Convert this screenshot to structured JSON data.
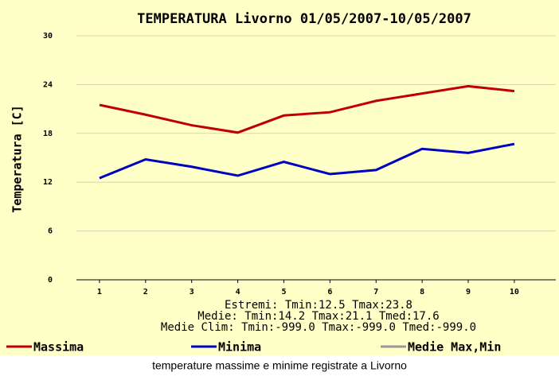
{
  "chart_data": {
    "type": "line",
    "title": "TEMPERATURA Livorno 01/05/2007-10/05/2007",
    "y_label": "Temperatura [C]",
    "x": [
      1,
      2,
      3,
      4,
      5,
      6,
      7,
      8,
      9,
      10
    ],
    "series": [
      {
        "name": "Massima",
        "color": "#c00000",
        "values": [
          21.5,
          20.3,
          19.0,
          18.1,
          20.2,
          20.6,
          22.0,
          22.9,
          23.8,
          23.2
        ]
      },
      {
        "name": "Minima",
        "color": "#0000c0",
        "values": [
          12.5,
          14.8,
          13.9,
          12.8,
          14.5,
          13.0,
          13.5,
          16.1,
          15.6,
          16.7
        ]
      }
    ],
    "legend_extra": [
      {
        "name": "Medie Max,Min",
        "color": "#999999"
      }
    ],
    "xlim": [
      0.5,
      10.9
    ],
    "xticks": [
      1,
      2,
      3,
      4,
      5,
      6,
      7,
      8,
      9,
      10
    ],
    "ylim": [
      0,
      30
    ],
    "yticks": [
      0,
      6,
      12,
      18,
      24,
      30
    ],
    "grid": true,
    "notes": [
      "Estremi: Tmin:12.5 Tmax:23.8",
      "Medie: Tmin:14.2 Tmax:21.1 Tmed:17.6",
      "Medie Clim: Tmin:-999.0 Tmax:-999.0 Tmed:-999.0"
    ],
    "caption": "temperature  massime e minime registrate a Livorno"
  }
}
